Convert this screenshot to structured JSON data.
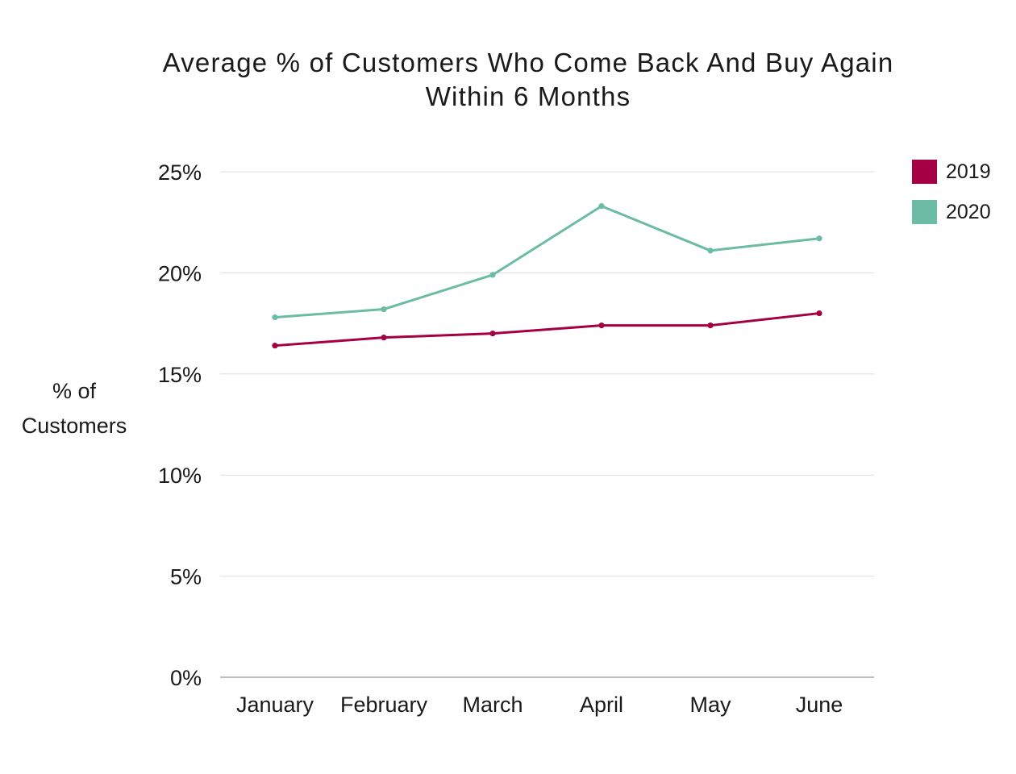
{
  "chart_data": {
    "type": "line",
    "title_lines": [
      "Average % of Customers Who Come Back And Buy Again",
      "Within 6 Months"
    ],
    "ylabel_lines": [
      "% of",
      "Customers"
    ],
    "xlabel": "",
    "categories": [
      "January",
      "February",
      "March",
      "April",
      "May",
      "June"
    ],
    "ylim": [
      0,
      25
    ],
    "yticks": [
      0,
      5,
      10,
      15,
      20,
      25
    ],
    "ytick_labels": [
      "0%",
      "5%",
      "10%",
      "15%",
      "20%",
      "25%"
    ],
    "grid": true,
    "legend_position": "top-right",
    "series": [
      {
        "name": "2019",
        "color": "#a50044",
        "values": [
          16.4,
          16.8,
          17.0,
          17.4,
          17.4,
          18.0
        ]
      },
      {
        "name": "2020",
        "color": "#6bbba5",
        "values": [
          17.8,
          18.2,
          19.9,
          23.3,
          21.1,
          21.7
        ]
      }
    ]
  }
}
